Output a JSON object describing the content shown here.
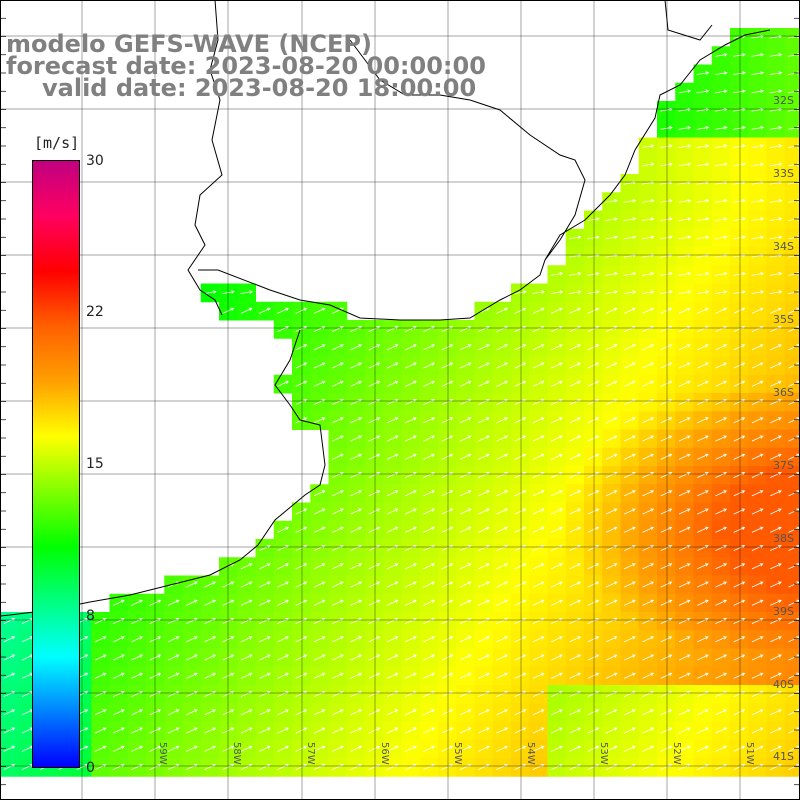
{
  "titles": {
    "model": "modelo GEFS-WAVE (NCEP)",
    "forecast": "forecast date: 2023-08-20 00:00:00",
    "valid": "valid date: 2023-08-20 18:00:00"
  },
  "colorbar": {
    "unit": "[m/s]",
    "min": 0,
    "max": 30,
    "tick_labels": [
      "30",
      "22",
      "15",
      "8",
      "0"
    ],
    "tick_values": [
      30,
      22,
      15,
      8,
      0
    ],
    "colors": [
      "#0000ff",
      "#0080ff",
      "#00ffff",
      "#00ff80",
      "#00ff00",
      "#80ff00",
      "#ffff00",
      "#ffa000",
      "#ff6000",
      "#ff0000",
      "#ff0060",
      "#c00080"
    ]
  },
  "map": {
    "lat_labels": [
      "32S",
      "33S",
      "34S",
      "35S",
      "36S",
      "37S",
      "38S",
      "39S",
      "40S",
      "41S"
    ],
    "lon_labels": [
      "59W",
      "58W",
      "57W",
      "56W",
      "55W",
      "54W",
      "53W",
      "52W",
      "51W"
    ],
    "wind_direction": "west to east (arrows point east-northeast)",
    "grid": true
  },
  "colors": {
    "coast": "#000000",
    "grid": "#000000",
    "title": "#808080"
  }
}
